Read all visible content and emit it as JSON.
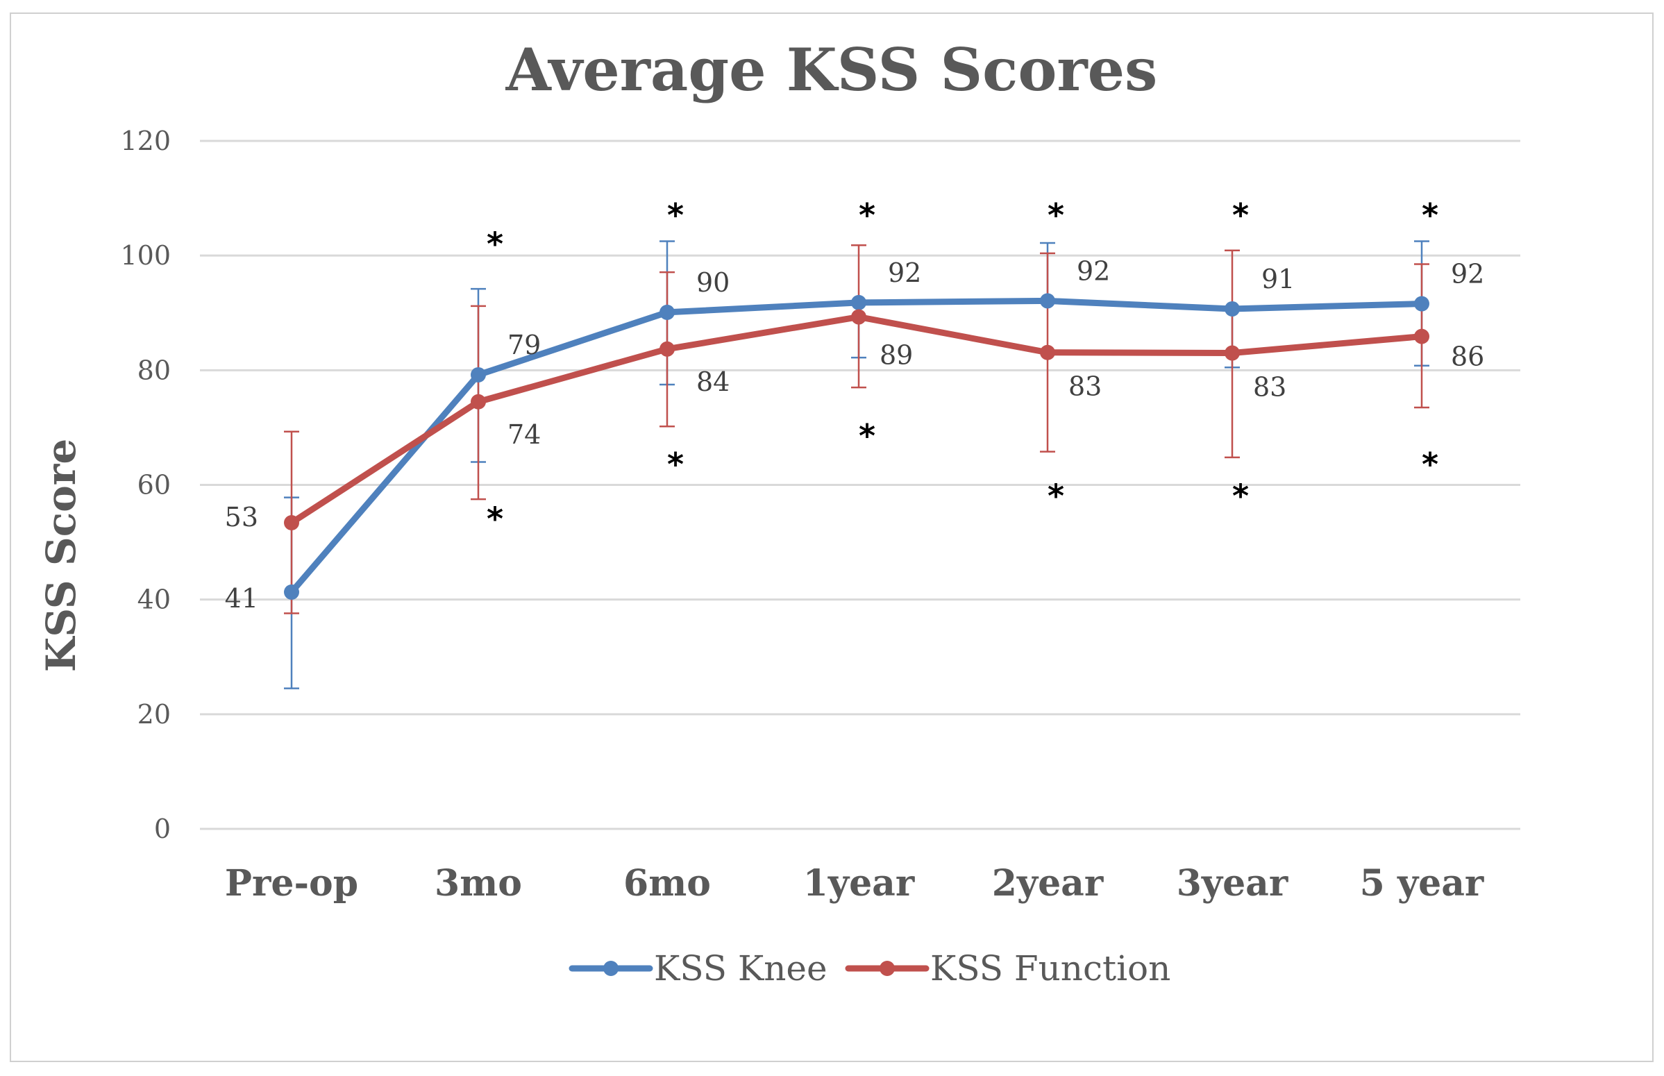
{
  "chart_data": {
    "type": "line",
    "title": "Average KSS Scores",
    "xlabel": "",
    "ylabel": "KSS Score",
    "ylim": [
      0,
      120
    ],
    "yticks": [
      0,
      20,
      40,
      60,
      80,
      100,
      120
    ],
    "grid": true,
    "legend_position": "bottom",
    "categories": [
      "Pre-op",
      "3mo",
      "6mo",
      "1year",
      "2year",
      "3year",
      "5 year"
    ],
    "series": [
      {
        "name": "KSS Knee",
        "color": "#4f81bd",
        "values": [
          41.3,
          79.2,
          90.1,
          91.8,
          92.1,
          90.7,
          91.6
        ],
        "labels": [
          "41",
          "79",
          "90",
          "92",
          "92",
          "91",
          "92"
        ],
        "error_low": [
          24.5,
          64.0,
          77.5,
          82.2,
          null,
          80.5,
          80.8
        ],
        "error_high": [
          57.8,
          94.2,
          102.5,
          null,
          102.2,
          null,
          102.5
        ]
      },
      {
        "name": "KSS Function",
        "color": "#c0504d",
        "values": [
          53.4,
          74.5,
          83.7,
          89.3,
          83.1,
          83.0,
          85.9
        ],
        "labels": [
          "53",
          "74",
          "84",
          "89",
          "83",
          "83",
          "86"
        ],
        "error_low": [
          37.6,
          57.5,
          70.2,
          77.0,
          65.8,
          64.8,
          73.5
        ],
        "error_high": [
          69.3,
          91.2,
          97.1,
          101.8,
          100.4,
          100.9,
          98.5
        ]
      }
    ],
    "significance_marker": "*",
    "significance_marks": [
      {
        "category": "3mo",
        "value": 103.5
      },
      {
        "category": "3mo",
        "value": 55.5
      },
      {
        "category": "6mo",
        "value": 108.5
      },
      {
        "category": "6mo",
        "value": 65.0
      },
      {
        "category": "1year",
        "value": 108.5
      },
      {
        "category": "1year",
        "value": 70.0
      },
      {
        "category": "2year",
        "value": 108.5
      },
      {
        "category": "2year",
        "value": 59.5
      },
      {
        "category": "3year",
        "value": 108.5
      },
      {
        "category": "3year",
        "value": 59.5
      },
      {
        "category": "5 year",
        "value": 108.5
      },
      {
        "category": "5 year",
        "value": 65.0
      }
    ]
  }
}
